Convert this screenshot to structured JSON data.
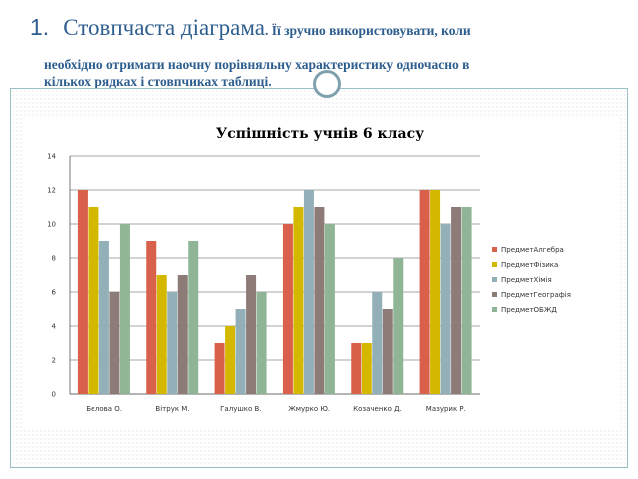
{
  "slide": {
    "number": "1.",
    "title": "Стовпчаста діаграма",
    "lead": ". Її зручно використовувати, коли",
    "body_line1": "необхідно отримати наочну порівняльну характеристику одночасно в",
    "body_line2": "кількох рядках і стовпчиках таблиці."
  },
  "colors": {
    "title": "#2E5E8E",
    "series": [
      "#D9604A",
      "#D4B800",
      "#93AFB8",
      "#8C7B77",
      "#8FB596"
    ]
  },
  "chart_data": {
    "type": "bar",
    "title": "Успішність учнів 6 класу",
    "categories": [
      "Бєлова О.",
      "Вітрук М.",
      "Галушко В.",
      "Жмурко Ю.",
      "Козаченко Д.",
      "Мазурик Р."
    ],
    "series": [
      {
        "name": "ПредметАлгебра",
        "values": [
          12,
          9,
          3,
          10,
          3,
          12
        ]
      },
      {
        "name": "ПредметФізика",
        "values": [
          11,
          7,
          4,
          11,
          3,
          12
        ]
      },
      {
        "name": "ПредметХімія",
        "values": [
          9,
          6,
          5,
          12,
          6,
          10
        ]
      },
      {
        "name": "ПредметГеографія",
        "values": [
          6,
          7,
          7,
          11,
          5,
          11
        ]
      },
      {
        "name": "ПредметОБЖД",
        "values": [
          10,
          9,
          6,
          10,
          8,
          11
        ]
      }
    ],
    "ylim": [
      0,
      14
    ],
    "yticks": [
      0,
      2,
      4,
      6,
      8,
      10,
      12,
      14
    ],
    "grid": true,
    "legend_position": "right"
  }
}
